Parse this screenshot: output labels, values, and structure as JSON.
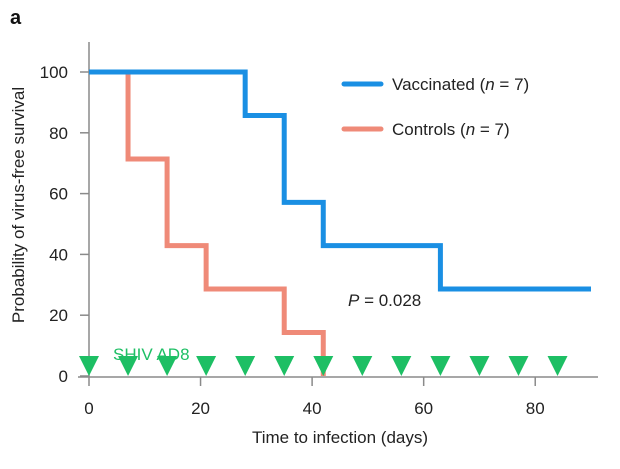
{
  "chart_data": {
    "type": "line",
    "subtype": "kaplan-meier-step",
    "panel_label": "a",
    "title": "",
    "xlabel": "Time to infection (days)",
    "ylabel": "Probability of virus-free survival",
    "xlim": [
      0,
      90
    ],
    "ylim": [
      0,
      100
    ],
    "xticks": [
      0,
      20,
      40,
      60,
      80
    ],
    "yticks": [
      0,
      20,
      40,
      60,
      80,
      100
    ],
    "grid": false,
    "legend_position": "top-right",
    "series": [
      {
        "name": "Vaccinated",
        "legend_label": "Vaccinated (",
        "legend_n": "n",
        "legend_suffix": " = 7)",
        "color": "#1a8fe3",
        "steps": [
          {
            "x": 0,
            "y": 100
          },
          {
            "x": 28,
            "y": 85.7
          },
          {
            "x": 35,
            "y": 57.1
          },
          {
            "x": 42,
            "y": 42.9
          },
          {
            "x": 63,
            "y": 28.6
          }
        ],
        "end_x": 90
      },
      {
        "name": "Controls",
        "legend_label": "Controls (",
        "legend_n": "n",
        "legend_suffix": " = 7)",
        "color": "#ef8a78",
        "steps": [
          {
            "x": 0,
            "y": 100
          },
          {
            "x": 7,
            "y": 71.4
          },
          {
            "x": 14,
            "y": 42.9
          },
          {
            "x": 21,
            "y": 28.6
          },
          {
            "x": 35,
            "y": 14.3
          },
          {
            "x": 42,
            "y": 0
          }
        ],
        "end_x": 42
      }
    ],
    "challenge": {
      "label": "SHIV AD8",
      "color": "#1dbf64",
      "days": [
        0,
        7,
        14,
        21,
        28,
        35,
        42,
        49,
        56,
        63,
        70,
        77,
        84
      ]
    },
    "annotation": {
      "p_symbol": "P",
      "p_text": " = 0.028"
    }
  }
}
